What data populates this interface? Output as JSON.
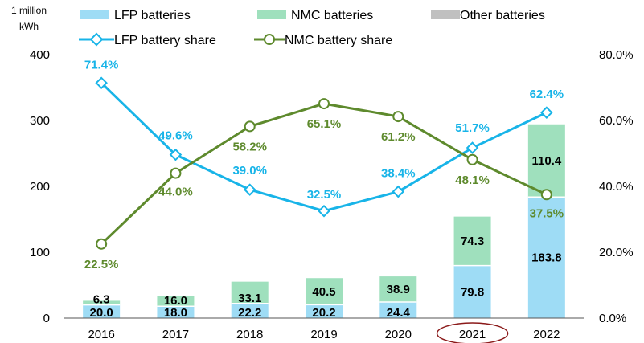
{
  "chart_data": {
    "type": "bar",
    "stacked": true,
    "categories": [
      "2016",
      "2017",
      "2018",
      "2019",
      "2020",
      "2021",
      "2022"
    ],
    "series": [
      {
        "name": "LFP batteries",
        "values": [
          20.0,
          18.0,
          22.2,
          20.2,
          24.4,
          79.8,
          183.8
        ],
        "color": "#9edcf5"
      },
      {
        "name": "NMC batteries",
        "values": [
          6.3,
          16.0,
          33.1,
          40.5,
          38.9,
          74.3,
          110.4
        ],
        "color": "#9fe0bd"
      },
      {
        "name": "Other batteries",
        "values": [
          null,
          null,
          null,
          null,
          null,
          null,
          null
        ],
        "color": "#c0c0c0"
      }
    ],
    "bar_labels": {
      "lfp": [
        "20.0",
        "18.0",
        "22.2",
        "20.2",
        "24.4",
        "79.8",
        "183.8"
      ],
      "nmc": [
        "6.3",
        "16.0",
        "33.1",
        "40.5",
        "38.9",
        "74.3",
        "110.4"
      ]
    },
    "lines": [
      {
        "name": "LFP battery share",
        "values": [
          71.4,
          49.6,
          39.0,
          32.5,
          38.4,
          51.7,
          62.4
        ],
        "labels": [
          "71.4%",
          "49.6%",
          "39.0%",
          "32.5%",
          "38.4%",
          "51.7%",
          "62.4%"
        ],
        "color": "#18b4e8",
        "marker": "diamond"
      },
      {
        "name": "NMC battery share",
        "values": [
          22.5,
          44.0,
          58.2,
          65.1,
          61.2,
          48.1,
          37.5
        ],
        "labels": [
          "22.5%",
          "44.0%",
          "58.2%",
          "65.1%",
          "61.2%",
          "48.1%",
          "37.5%"
        ],
        "color": "#5e8a2d",
        "marker": "circle"
      }
    ],
    "ylabel": "1 million\nkWh",
    "ylabel_lines": [
      "1 million",
      "kWh"
    ],
    "ylim": [
      0,
      400
    ],
    "yticks": [
      "0",
      "100",
      "200",
      "300",
      "400"
    ],
    "y2lim": [
      0,
      80
    ],
    "y2ticks": [
      "0.0%",
      "20.0%",
      "40.0%",
      "60.0%",
      "80.0%"
    ],
    "legend_position": "top",
    "highlighted_category": "2021",
    "highlight_color": "#8b1a1a",
    "grid": false
  }
}
